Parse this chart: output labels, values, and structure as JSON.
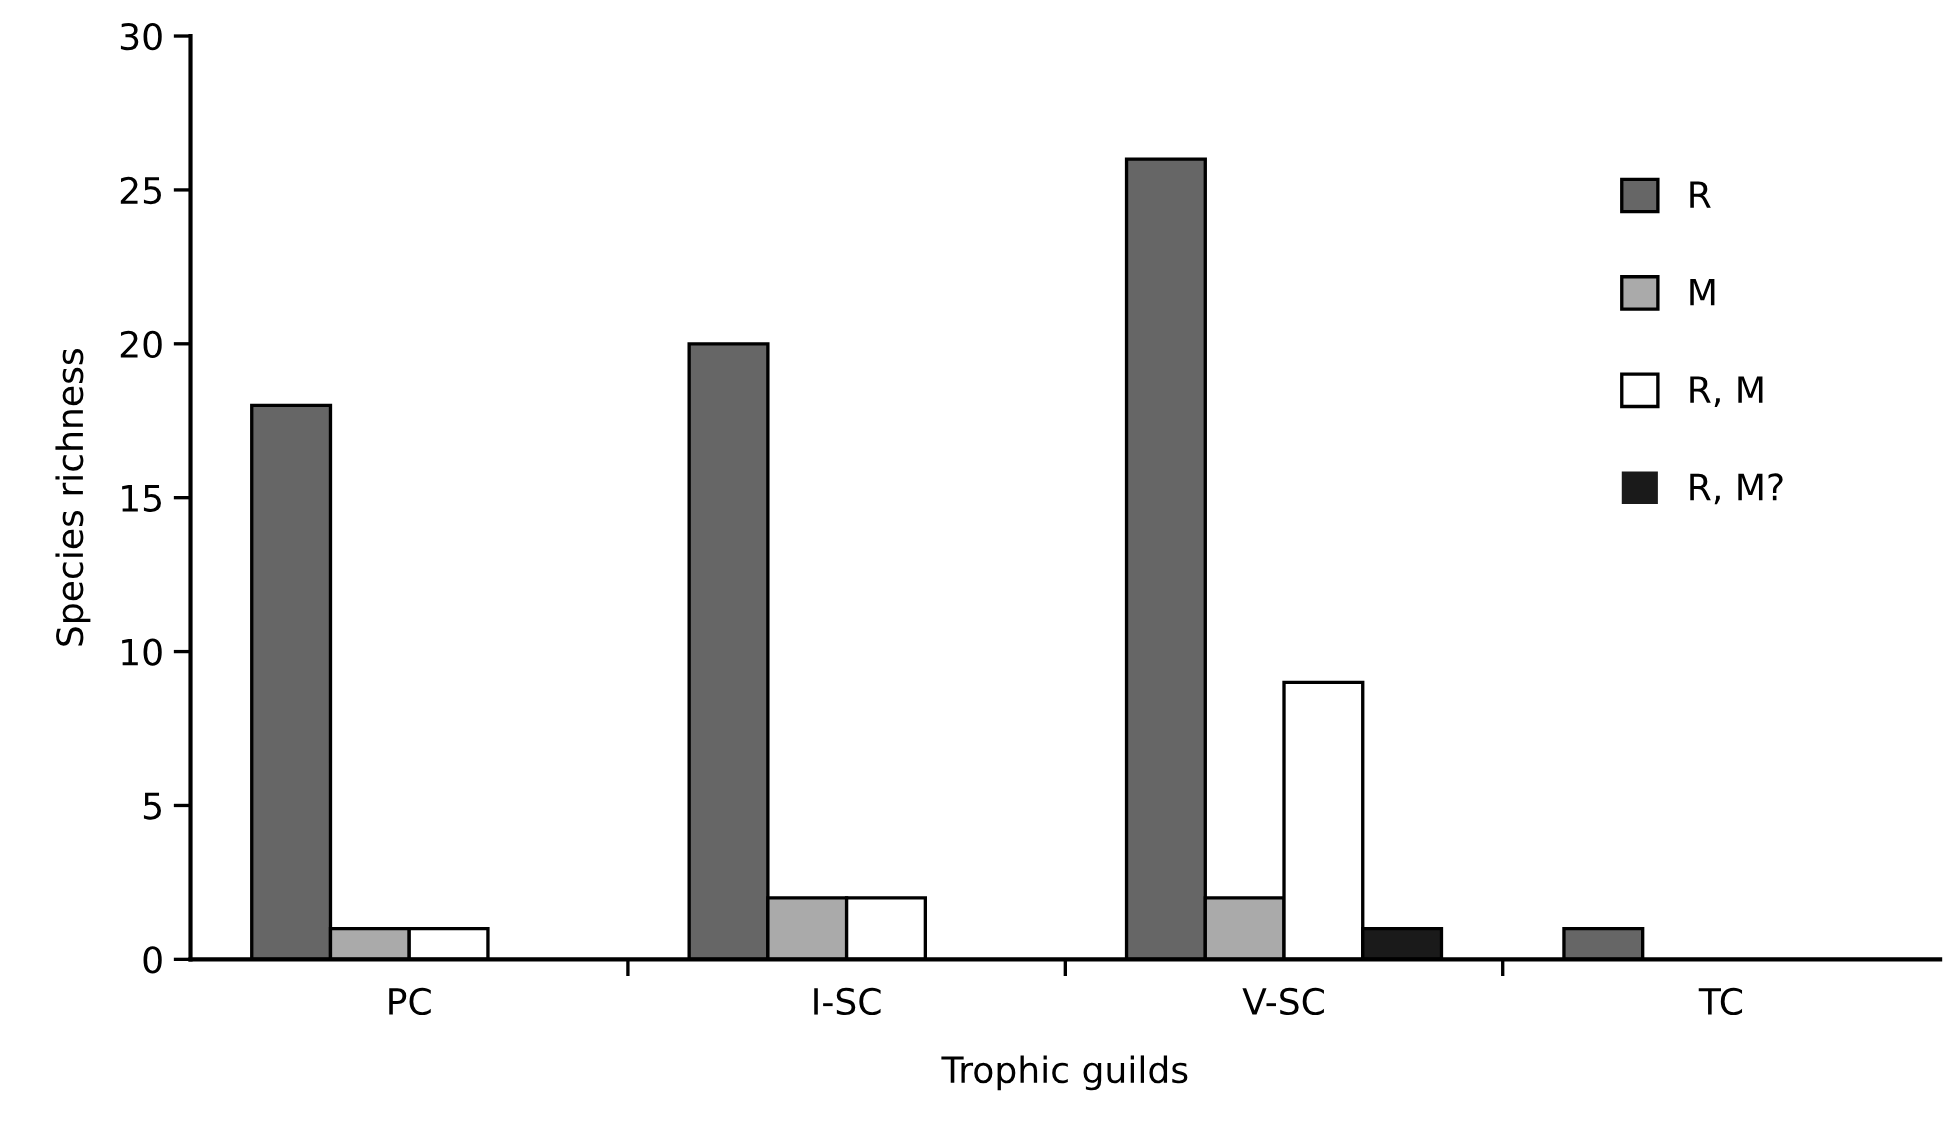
{
  "chart_data": {
    "type": "bar",
    "xlabel": "Trophic guilds",
    "ylabel": "Species richness",
    "categories": [
      "PC",
      "I-SC",
      "V-SC",
      "TC"
    ],
    "series": [
      {
        "name": "R",
        "color": "#666666",
        "values": [
          18,
          20,
          26,
          1
        ]
      },
      {
        "name": "M",
        "color": "#aaaaaa",
        "values": [
          1,
          2,
          2,
          0
        ]
      },
      {
        "name": "R, M",
        "color": "#ffffff",
        "values": [
          1,
          2,
          9,
          0
        ]
      },
      {
        "name": "R, M?",
        "color": "#1a1a1a",
        "values": [
          0,
          0,
          1,
          0
        ]
      }
    ],
    "ylim": [
      0,
      30
    ],
    "yticks": [
      0,
      5,
      10,
      15,
      20,
      25,
      30
    ],
    "grid": false,
    "legend": "top right"
  }
}
